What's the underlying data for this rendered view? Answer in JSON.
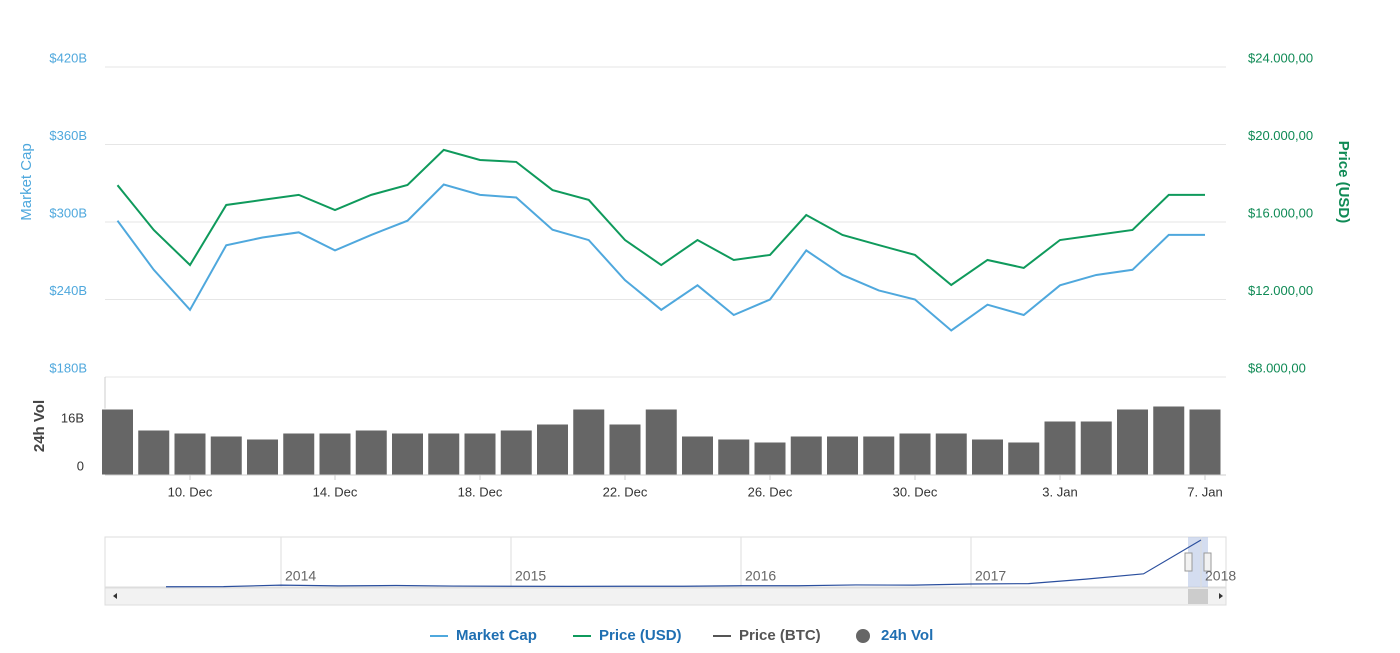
{
  "chart_data": [
    {
      "type": "line",
      "categories": [
        null,
        null,
        "10. Dec",
        null,
        null,
        null,
        "14. Dec",
        null,
        null,
        null,
        "18. Dec",
        null,
        null,
        null,
        "22. Dec",
        null,
        null,
        null,
        "26. Dec",
        null,
        null,
        null,
        "30. Dec",
        null,
        null,
        null,
        "3. Jan",
        null,
        null,
        null,
        "7. Jan"
      ],
      "y_label": "Market Cap",
      "y2_label": "Price (USD)",
      "ylim": [
        180,
        420
      ],
      "yticks": [
        {
          "value": 180,
          "label": "$180B"
        },
        {
          "value": 240,
          "label": "$240B"
        },
        {
          "value": 300,
          "label": "$300B"
        },
        {
          "value": 360,
          "label": "$360B"
        },
        {
          "value": 420,
          "label": "$420B"
        }
      ],
      "y2lim": [
        8000,
        24000
      ],
      "y2ticks": [
        {
          "value": 8000,
          "label": "$8.000,00"
        },
        {
          "value": 12000,
          "label": "$12.000,00"
        },
        {
          "value": 16000,
          "label": "$16.000,00"
        },
        {
          "value": 20000,
          "label": "$20.000,00"
        },
        {
          "value": 24000,
          "label": "$24.000,00"
        }
      ],
      "grid": true,
      "series": [
        {
          "name": "Market Cap",
          "color": "#4fa8dd",
          "values": [
            301,
            263,
            232,
            282,
            288,
            292,
            278,
            290,
            301,
            329,
            321,
            319,
            294,
            286,
            255,
            232,
            251,
            228,
            240,
            278,
            259,
            247,
            240,
            216,
            236,
            228,
            251,
            259,
            263,
            290,
            290
          ]
        },
        {
          "name": "Price (USD)",
          "color": "#0f9a5c",
          "axis": "y2",
          "values": [
            17900,
            15590,
            13780,
            16880,
            17140,
            17400,
            16620,
            17400,
            17910,
            19720,
            19200,
            19100,
            17650,
            17140,
            15070,
            13780,
            15070,
            14040,
            14300,
            16360,
            15330,
            14810,
            14300,
            12750,
            14040,
            13630,
            15070,
            15330,
            15590,
            17400,
            17400
          ]
        },
        {
          "name": "Price (BTC)",
          "color": "#555555",
          "visible": false
        }
      ]
    },
    {
      "type": "bar",
      "y_label": "24h Vol",
      "ylim": [
        0,
        32
      ],
      "yticks": [
        0,
        {
          "value": 16,
          "label": "16B"
        }
      ],
      "series": [
        {
          "name": "24h Vol",
          "color": "#666666",
          "values": [
            22,
            15,
            14,
            13,
            12,
            14,
            14,
            15,
            14,
            14,
            14,
            15,
            17,
            22,
            17,
            22,
            13,
            12,
            11,
            13,
            13,
            13,
            14,
            14,
            12,
            11,
            18,
            18,
            22,
            23,
            22
          ]
        }
      ]
    },
    {
      "type": "navigator",
      "categories": [
        null,
        null,
        "2014",
        null,
        null,
        null,
        "2015",
        null,
        null,
        null,
        "2016",
        null,
        null,
        null,
        "2017",
        null,
        null,
        null,
        "2018"
      ],
      "color": "#2b4f9e",
      "values": [
        1.5,
        2,
        10,
        6,
        8,
        5,
        4,
        3.5,
        3.8,
        4,
        6.5,
        6.5,
        11,
        10,
        16,
        18,
        42,
        70,
        250
      ]
    }
  ]
}
